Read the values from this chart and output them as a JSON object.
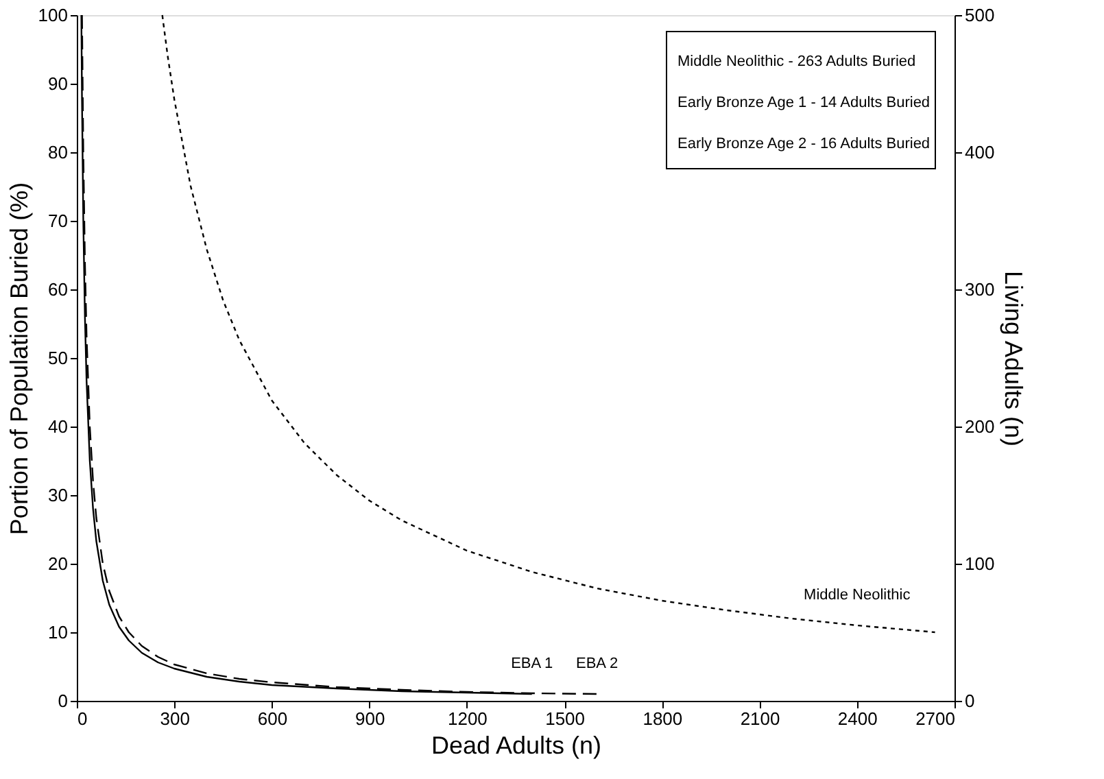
{
  "chart_data": {
    "type": "line",
    "xlabel": "Dead Adults (n)",
    "ylabel": "Portion of Population Buried (%)",
    "y2label": "Living Adults (n)",
    "xlim": [
      0,
      2700
    ],
    "xticks": [
      0,
      300,
      600,
      900,
      1200,
      1500,
      1800,
      2100,
      2400,
      2700
    ],
    "ylim": [
      0,
      100
    ],
    "yticks": [
      0,
      10,
      20,
      30,
      40,
      50,
      60,
      70,
      80,
      90,
      100
    ],
    "y2lim": [
      0,
      500
    ],
    "y2ticks": [
      0,
      100,
      200,
      300,
      400,
      500
    ],
    "grid": false,
    "marker": "none",
    "annotations": [
      "Middle Neolithic - 263 Adults Buried",
      "Early Bronze Age 1 - 14 Adults Buried",
      "Early Bronze Age 2 - 16 Adults Buried"
    ],
    "series": [
      {
        "name": "Middle Neolithic",
        "color": "#000000",
        "line_style": "dotted",
        "x": [
          263,
          280,
          300,
          350,
          400,
          450,
          500,
          600,
          700,
          800,
          900,
          1000,
          1200,
          1400,
          1600,
          1800,
          2000,
          2200,
          2400,
          2640
        ],
        "values": [
          100,
          93.9,
          87.7,
          75.1,
          65.8,
          58.4,
          52.6,
          43.8,
          37.6,
          32.9,
          29.2,
          26.3,
          21.9,
          18.8,
          16.4,
          14.6,
          13.2,
          12.0,
          11.0,
          10.0
        ]
      },
      {
        "name": "EBA 1",
        "color": "#000000",
        "line_style": "solid",
        "x": [
          14,
          16,
          20,
          25,
          30,
          40,
          50,
          60,
          80,
          100,
          130,
          160,
          200,
          250,
          300,
          400,
          500,
          600,
          800,
          1000,
          1200,
          1400
        ],
        "values": [
          100,
          87.5,
          70,
          56,
          46.7,
          35,
          28,
          23.3,
          17.5,
          14,
          10.8,
          8.8,
          7,
          5.6,
          4.7,
          3.5,
          2.8,
          2.3,
          1.8,
          1.4,
          1.2,
          1.0
        ]
      },
      {
        "name": "EBA 2",
        "color": "#000000",
        "line_style": "dashed",
        "x": [
          16,
          20,
          25,
          30,
          40,
          50,
          60,
          80,
          100,
          130,
          160,
          200,
          250,
          300,
          400,
          500,
          600,
          800,
          1000,
          1200,
          1400,
          1600
        ],
        "values": [
          100,
          80,
          64,
          53.3,
          40,
          32,
          26.7,
          20,
          16,
          12.3,
          10,
          8,
          6.4,
          5.3,
          4,
          3.2,
          2.7,
          2,
          1.6,
          1.3,
          1.1,
          1.0
        ]
      }
    ]
  }
}
